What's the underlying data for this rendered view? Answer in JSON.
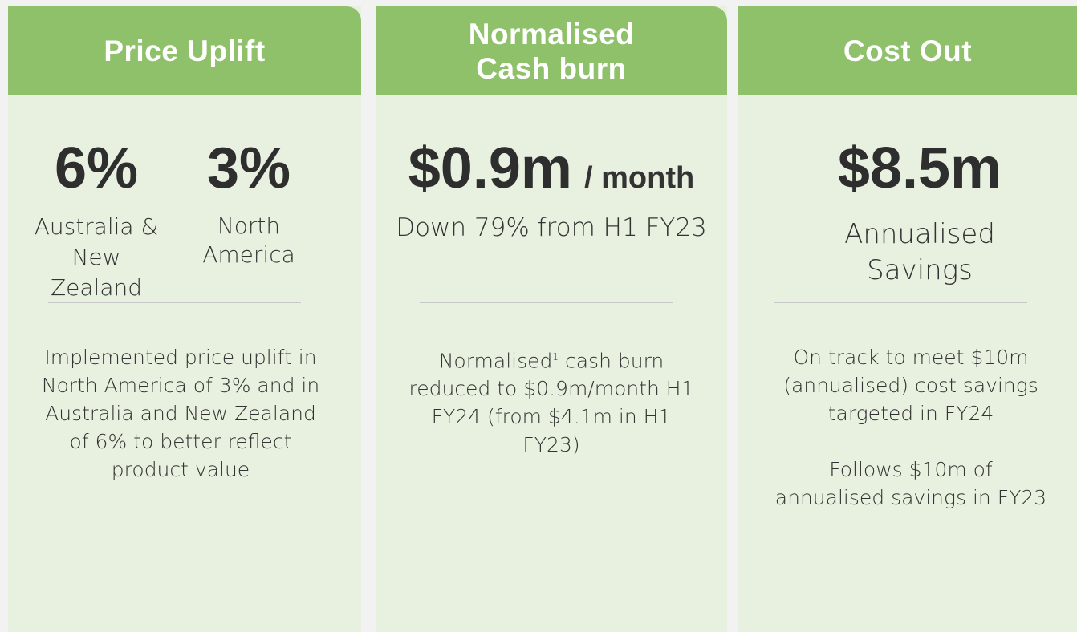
{
  "cards": [
    {
      "title": "Price Uplift",
      "metrics": [
        {
          "value": "6%",
          "label": "Australia & New Zealand"
        },
        {
          "value": "3%",
          "label": "North America"
        }
      ],
      "body": [
        "Implemented price uplift in North America of 3% and in Australia and New Zealand of 6% to better reflect product value"
      ]
    },
    {
      "title": "Normalised Cash burn",
      "headline": "$0.9m",
      "headline_suffix": "/ month",
      "subtitle": "Down 79% from H1 FY23",
      "body_prefix": "Normalised",
      "footnote": "1",
      "body_rest": " cash burn reduced to $0.9m/month H1 FY24 (from $4.1m in H1 FY23)"
    },
    {
      "title": "Cost Out",
      "headline": "$8.5m",
      "subtitle": "Annualised Savings",
      "body": [
        "On track to meet $10m (annualised) cost savings targeted in FY24",
        "Follows $10m of annualised savings in FY23"
      ]
    }
  ]
}
